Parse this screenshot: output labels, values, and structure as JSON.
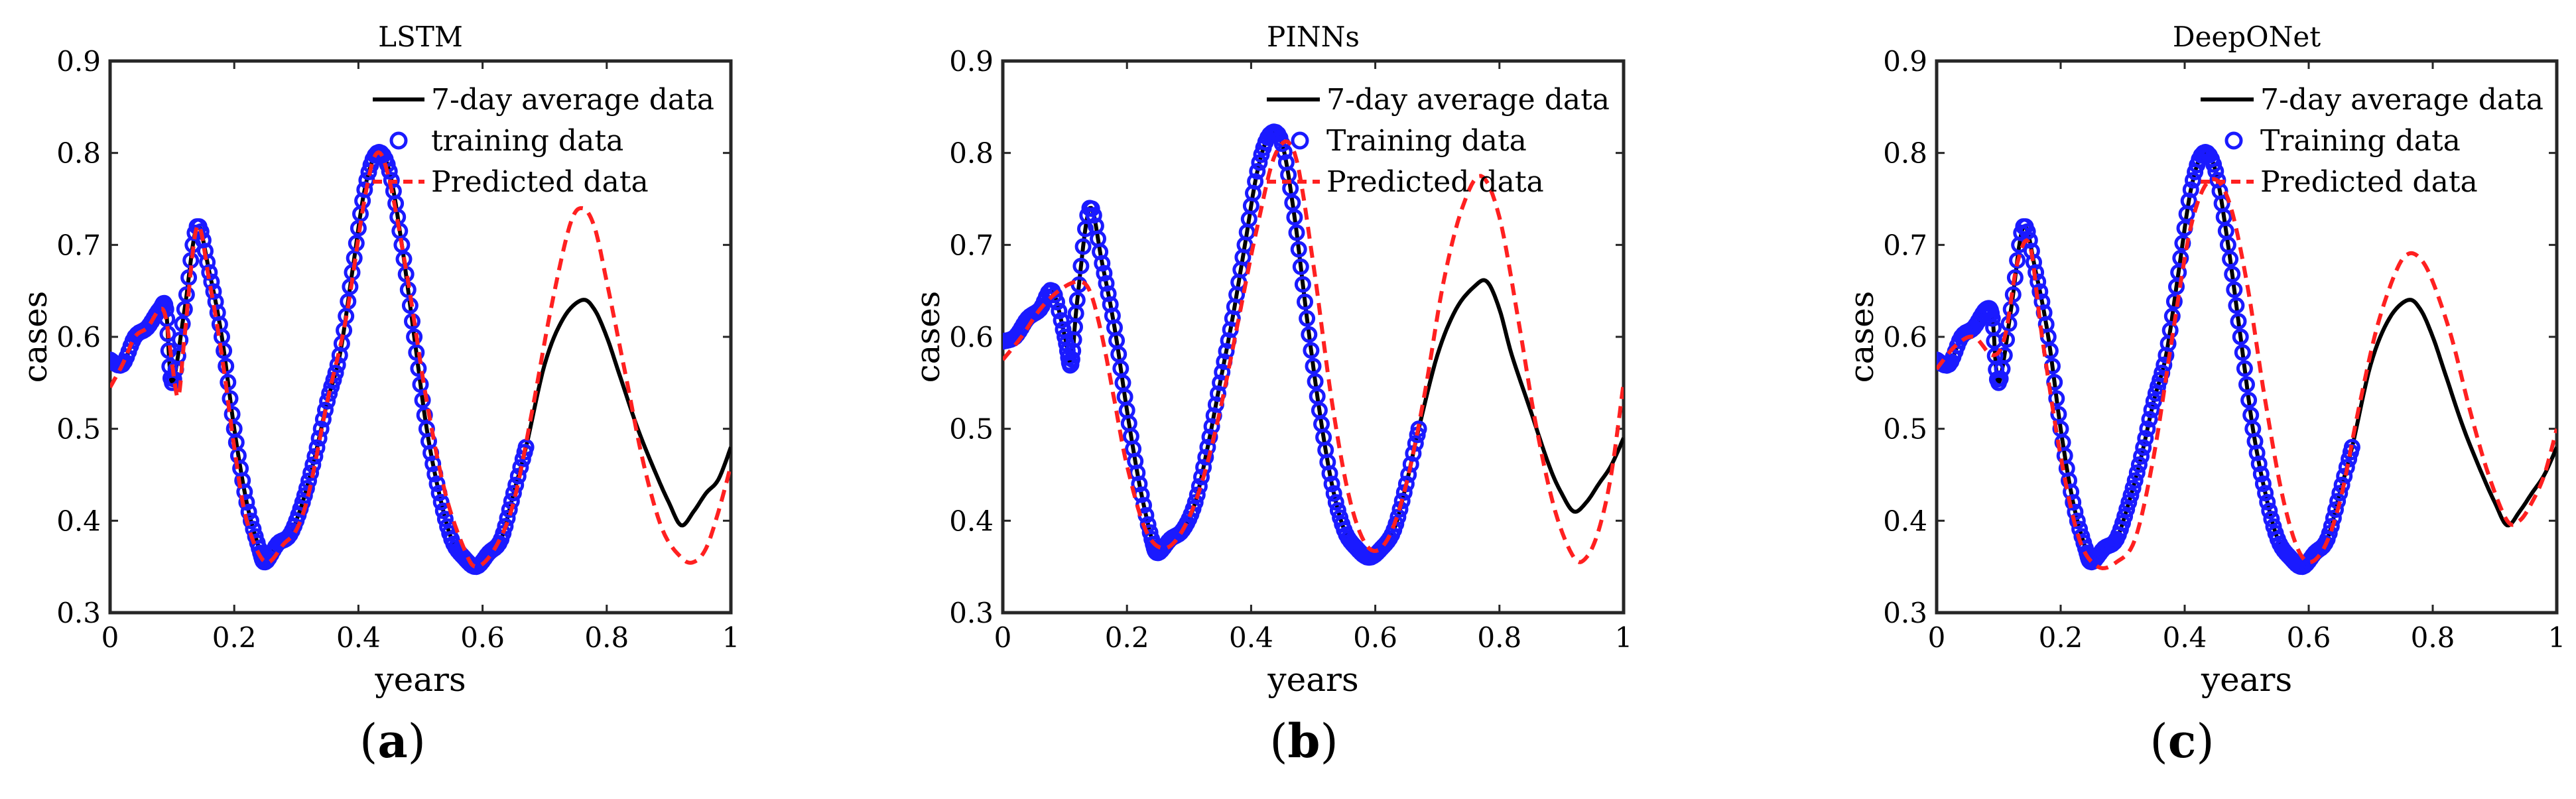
{
  "figure": {
    "captions": [
      {
        "open": "(",
        "letter": "a",
        "close": ")"
      },
      {
        "open": "(",
        "letter": "b",
        "close": ")"
      },
      {
        "open": "(",
        "letter": "c",
        "close": ")"
      }
    ]
  },
  "chart_data": [
    {
      "type": "line",
      "title": "LSTM",
      "xlabel": "years",
      "ylabel": "cases",
      "xlim": [
        0,
        1
      ],
      "ylim": [
        0.3,
        0.9
      ],
      "xticks": [
        "0",
        "0.2",
        "0.4",
        "0.6",
        "0.8",
        "1"
      ],
      "yticks": [
        "0.3",
        "0.4",
        "0.5",
        "0.6",
        "0.7",
        "0.8",
        "0.9"
      ],
      "legend_position": "top-right",
      "colors": {
        "average": "#000000",
        "training": "#1a1aff",
        "predicted": "#ff2020"
      },
      "series": [
        {
          "name": "7-day average data",
          "style": "solid-black",
          "x": [
            0,
            0.02,
            0.04,
            0.06,
            0.08,
            0.09,
            0.1,
            0.12,
            0.14,
            0.16,
            0.18,
            0.2,
            0.22,
            0.24,
            0.25,
            0.27,
            0.29,
            0.31,
            0.33,
            0.35,
            0.37,
            0.39,
            0.41,
            0.43,
            0.45,
            0.47,
            0.49,
            0.51,
            0.53,
            0.55,
            0.57,
            0.59,
            0.61,
            0.63,
            0.65,
            0.67,
            0.7,
            0.73,
            0.76,
            0.78,
            0.8,
            0.82,
            0.85,
            0.88,
            0.9,
            0.92,
            0.94,
            0.96,
            0.98,
            1
          ],
          "y": [
            0.575,
            0.57,
            0.6,
            0.61,
            0.63,
            0.63,
            0.55,
            0.63,
            0.72,
            0.67,
            0.6,
            0.5,
            0.42,
            0.37,
            0.355,
            0.375,
            0.385,
            0.42,
            0.47,
            0.53,
            0.58,
            0.67,
            0.76,
            0.8,
            0.78,
            0.7,
            0.6,
            0.5,
            0.43,
            0.38,
            0.36,
            0.35,
            0.365,
            0.38,
            0.43,
            0.48,
            0.57,
            0.62,
            0.64,
            0.63,
            0.6,
            0.56,
            0.5,
            0.45,
            0.42,
            0.395,
            0.41,
            0.43,
            0.445,
            0.48
          ]
        },
        {
          "name": "training data",
          "style": "blue-circles",
          "x": [
            0,
            0.02,
            0.04,
            0.06,
            0.08,
            0.09,
            0.1,
            0.12,
            0.14,
            0.16,
            0.18,
            0.2,
            0.22,
            0.24,
            0.25,
            0.27,
            0.29,
            0.31,
            0.33,
            0.35,
            0.37,
            0.39,
            0.41,
            0.43,
            0.45,
            0.47,
            0.49,
            0.51,
            0.53,
            0.55,
            0.57,
            0.59,
            0.61,
            0.63,
            0.65,
            0.67
          ],
          "y": [
            0.575,
            0.57,
            0.6,
            0.61,
            0.63,
            0.63,
            0.55,
            0.63,
            0.72,
            0.67,
            0.6,
            0.5,
            0.42,
            0.37,
            0.355,
            0.375,
            0.385,
            0.42,
            0.47,
            0.53,
            0.58,
            0.67,
            0.76,
            0.8,
            0.78,
            0.7,
            0.6,
            0.5,
            0.43,
            0.38,
            0.36,
            0.35,
            0.365,
            0.38,
            0.43,
            0.48
          ]
        },
        {
          "name": "Predicted data",
          "style": "red-dashed",
          "x": [
            0,
            0.02,
            0.04,
            0.06,
            0.08,
            0.09,
            0.1,
            0.11,
            0.12,
            0.14,
            0.16,
            0.18,
            0.2,
            0.22,
            0.25,
            0.28,
            0.3,
            0.32,
            0.35,
            0.38,
            0.41,
            0.43,
            0.45,
            0.48,
            0.51,
            0.54,
            0.57,
            0.59,
            0.62,
            0.65,
            0.68,
            0.71,
            0.74,
            0.76,
            0.78,
            0.8,
            0.83,
            0.86,
            0.89,
            0.92,
            0.94,
            0.96,
            0.98,
            1
          ],
          "y": [
            0.545,
            0.57,
            0.6,
            0.61,
            0.63,
            0.62,
            0.57,
            0.535,
            0.6,
            0.72,
            0.66,
            0.58,
            0.48,
            0.4,
            0.355,
            0.375,
            0.39,
            0.43,
            0.53,
            0.62,
            0.75,
            0.8,
            0.77,
            0.66,
            0.53,
            0.43,
            0.37,
            0.35,
            0.37,
            0.42,
            0.52,
            0.63,
            0.72,
            0.74,
            0.72,
            0.66,
            0.56,
            0.46,
            0.39,
            0.36,
            0.355,
            0.37,
            0.41,
            0.46
          ]
        }
      ]
    },
    {
      "type": "line",
      "title": "PINNs",
      "xlabel": "years",
      "ylabel": "cases",
      "xlim": [
        0,
        1
      ],
      "ylim": [
        0.3,
        0.9
      ],
      "xticks": [
        "0",
        "0.2",
        "0.4",
        "0.6",
        "0.8",
        "1"
      ],
      "yticks": [
        "0.3",
        "0.4",
        "0.5",
        "0.6",
        "0.7",
        "0.8",
        "0.9"
      ],
      "legend_position": "top-right",
      "colors": {
        "average": "#000000",
        "training": "#1a1aff",
        "predicted": "#ff2020"
      },
      "series": [
        {
          "name": "7-day average data",
          "style": "solid-black",
          "x": [
            0,
            0.02,
            0.04,
            0.06,
            0.08,
            0.1,
            0.11,
            0.12,
            0.14,
            0.16,
            0.18,
            0.2,
            0.22,
            0.24,
            0.25,
            0.27,
            0.29,
            0.31,
            0.33,
            0.35,
            0.37,
            0.39,
            0.41,
            0.43,
            0.45,
            0.47,
            0.49,
            0.51,
            0.53,
            0.55,
            0.57,
            0.59,
            0.61,
            0.63,
            0.65,
            0.67,
            0.7,
            0.73,
            0.76,
            0.78,
            0.8,
            0.82,
            0.85,
            0.88,
            0.9,
            0.92,
            0.94,
            0.96,
            0.98,
            1
          ],
          "y": [
            0.595,
            0.6,
            0.62,
            0.63,
            0.65,
            0.6,
            0.57,
            0.64,
            0.74,
            0.68,
            0.61,
            0.52,
            0.44,
            0.38,
            0.365,
            0.38,
            0.39,
            0.42,
            0.48,
            0.55,
            0.62,
            0.7,
            0.78,
            0.82,
            0.81,
            0.73,
            0.62,
            0.52,
            0.44,
            0.39,
            0.37,
            0.36,
            0.37,
            0.39,
            0.44,
            0.5,
            0.58,
            0.63,
            0.655,
            0.66,
            0.63,
            0.58,
            0.52,
            0.46,
            0.43,
            0.41,
            0.42,
            0.44,
            0.46,
            0.49
          ]
        },
        {
          "name": "Training data",
          "style": "blue-circles",
          "x": [
            0,
            0.02,
            0.04,
            0.06,
            0.08,
            0.1,
            0.11,
            0.12,
            0.14,
            0.16,
            0.18,
            0.2,
            0.22,
            0.24,
            0.25,
            0.27,
            0.29,
            0.31,
            0.33,
            0.35,
            0.37,
            0.39,
            0.41,
            0.43,
            0.45,
            0.47,
            0.49,
            0.51,
            0.53,
            0.55,
            0.57,
            0.59,
            0.61,
            0.63,
            0.65,
            0.67
          ],
          "y": [
            0.595,
            0.6,
            0.62,
            0.63,
            0.65,
            0.6,
            0.57,
            0.64,
            0.74,
            0.68,
            0.61,
            0.52,
            0.44,
            0.38,
            0.365,
            0.38,
            0.39,
            0.42,
            0.48,
            0.55,
            0.62,
            0.7,
            0.78,
            0.82,
            0.81,
            0.73,
            0.62,
            0.52,
            0.44,
            0.39,
            0.37,
            0.36,
            0.37,
            0.39,
            0.44,
            0.5
          ]
        },
        {
          "name": "Predicted data",
          "style": "red-dashed",
          "x": [
            0,
            0.03,
            0.06,
            0.09,
            0.12,
            0.14,
            0.16,
            0.18,
            0.2,
            0.23,
            0.26,
            0.29,
            0.32,
            0.35,
            0.38,
            0.41,
            0.44,
            0.47,
            0.5,
            0.53,
            0.56,
            0.59,
            0.62,
            0.65,
            0.68,
            0.71,
            0.74,
            0.77,
            0.8,
            0.83,
            0.86,
            0.89,
            0.92,
            0.94,
            0.96,
            0.98,
            1
          ],
          "y": [
            0.575,
            0.6,
            0.63,
            0.65,
            0.66,
            0.65,
            0.6,
            0.53,
            0.46,
            0.39,
            0.37,
            0.39,
            0.44,
            0.52,
            0.62,
            0.72,
            0.8,
            0.8,
            0.68,
            0.53,
            0.42,
            0.37,
            0.38,
            0.44,
            0.54,
            0.66,
            0.74,
            0.775,
            0.73,
            0.62,
            0.5,
            0.41,
            0.36,
            0.36,
            0.39,
            0.45,
            0.55
          ]
        }
      ]
    },
    {
      "type": "line",
      "title": "DeepONet",
      "xlabel": "years",
      "ylabel": "cases",
      "xlim": [
        0,
        1
      ],
      "ylim": [
        0.3,
        0.9
      ],
      "xticks": [
        "0",
        "0.2",
        "0.4",
        "0.6",
        "0.8",
        "1"
      ],
      "yticks": [
        "0.3",
        "0.4",
        "0.5",
        "0.6",
        "0.7",
        "0.8",
        "0.9"
      ],
      "legend_position": "top-right",
      "colors": {
        "average": "#000000",
        "training": "#1a1aff",
        "predicted": "#ff2020"
      },
      "series": [
        {
          "name": "7-day average data",
          "style": "solid-black",
          "x": [
            0,
            0.02,
            0.04,
            0.06,
            0.08,
            0.09,
            0.1,
            0.12,
            0.14,
            0.16,
            0.18,
            0.2,
            0.22,
            0.24,
            0.25,
            0.27,
            0.29,
            0.31,
            0.33,
            0.35,
            0.37,
            0.39,
            0.41,
            0.43,
            0.45,
            0.47,
            0.49,
            0.51,
            0.53,
            0.55,
            0.57,
            0.59,
            0.61,
            0.63,
            0.65,
            0.67,
            0.7,
            0.73,
            0.76,
            0.78,
            0.8,
            0.82,
            0.85,
            0.88,
            0.9,
            0.92,
            0.94,
            0.96,
            0.98,
            1
          ],
          "y": [
            0.575,
            0.57,
            0.6,
            0.61,
            0.63,
            0.62,
            0.55,
            0.63,
            0.72,
            0.67,
            0.6,
            0.5,
            0.42,
            0.37,
            0.355,
            0.37,
            0.38,
            0.42,
            0.47,
            0.53,
            0.58,
            0.67,
            0.76,
            0.8,
            0.78,
            0.7,
            0.6,
            0.5,
            0.43,
            0.38,
            0.36,
            0.35,
            0.365,
            0.38,
            0.43,
            0.48,
            0.57,
            0.62,
            0.64,
            0.63,
            0.6,
            0.56,
            0.5,
            0.45,
            0.42,
            0.395,
            0.41,
            0.43,
            0.45,
            0.48
          ]
        },
        {
          "name": "Training data",
          "style": "blue-circles",
          "x": [
            0,
            0.02,
            0.04,
            0.06,
            0.08,
            0.09,
            0.1,
            0.12,
            0.14,
            0.16,
            0.18,
            0.2,
            0.22,
            0.24,
            0.25,
            0.27,
            0.29,
            0.31,
            0.33,
            0.35,
            0.37,
            0.39,
            0.41,
            0.43,
            0.45,
            0.47,
            0.49,
            0.51,
            0.53,
            0.55,
            0.57,
            0.59,
            0.61,
            0.63,
            0.65,
            0.67
          ],
          "y": [
            0.575,
            0.57,
            0.6,
            0.61,
            0.63,
            0.62,
            0.55,
            0.63,
            0.72,
            0.67,
            0.6,
            0.5,
            0.42,
            0.37,
            0.355,
            0.37,
            0.38,
            0.42,
            0.47,
            0.53,
            0.58,
            0.67,
            0.76,
            0.8,
            0.78,
            0.7,
            0.6,
            0.5,
            0.43,
            0.38,
            0.36,
            0.35,
            0.365,
            0.38,
            0.43,
            0.48
          ]
        },
        {
          "name": "Predicted data",
          "style": "red-dashed",
          "x": [
            0,
            0.03,
            0.06,
            0.09,
            0.11,
            0.13,
            0.15,
            0.17,
            0.2,
            0.23,
            0.26,
            0.29,
            0.32,
            0.35,
            0.38,
            0.41,
            0.44,
            0.47,
            0.5,
            0.53,
            0.56,
            0.59,
            0.62,
            0.65,
            0.68,
            0.71,
            0.74,
            0.76,
            0.78,
            0.8,
            0.83,
            0.86,
            0.89,
            0.92,
            0.94,
            0.96,
            0.98,
            1
          ],
          "y": [
            0.565,
            0.59,
            0.6,
            0.58,
            0.6,
            0.68,
            0.7,
            0.6,
            0.47,
            0.38,
            0.35,
            0.355,
            0.38,
            0.47,
            0.6,
            0.72,
            0.77,
            0.75,
            0.66,
            0.53,
            0.42,
            0.36,
            0.365,
            0.42,
            0.52,
            0.61,
            0.67,
            0.69,
            0.685,
            0.66,
            0.6,
            0.52,
            0.45,
            0.4,
            0.4,
            0.42,
            0.45,
            0.5
          ]
        }
      ]
    }
  ]
}
